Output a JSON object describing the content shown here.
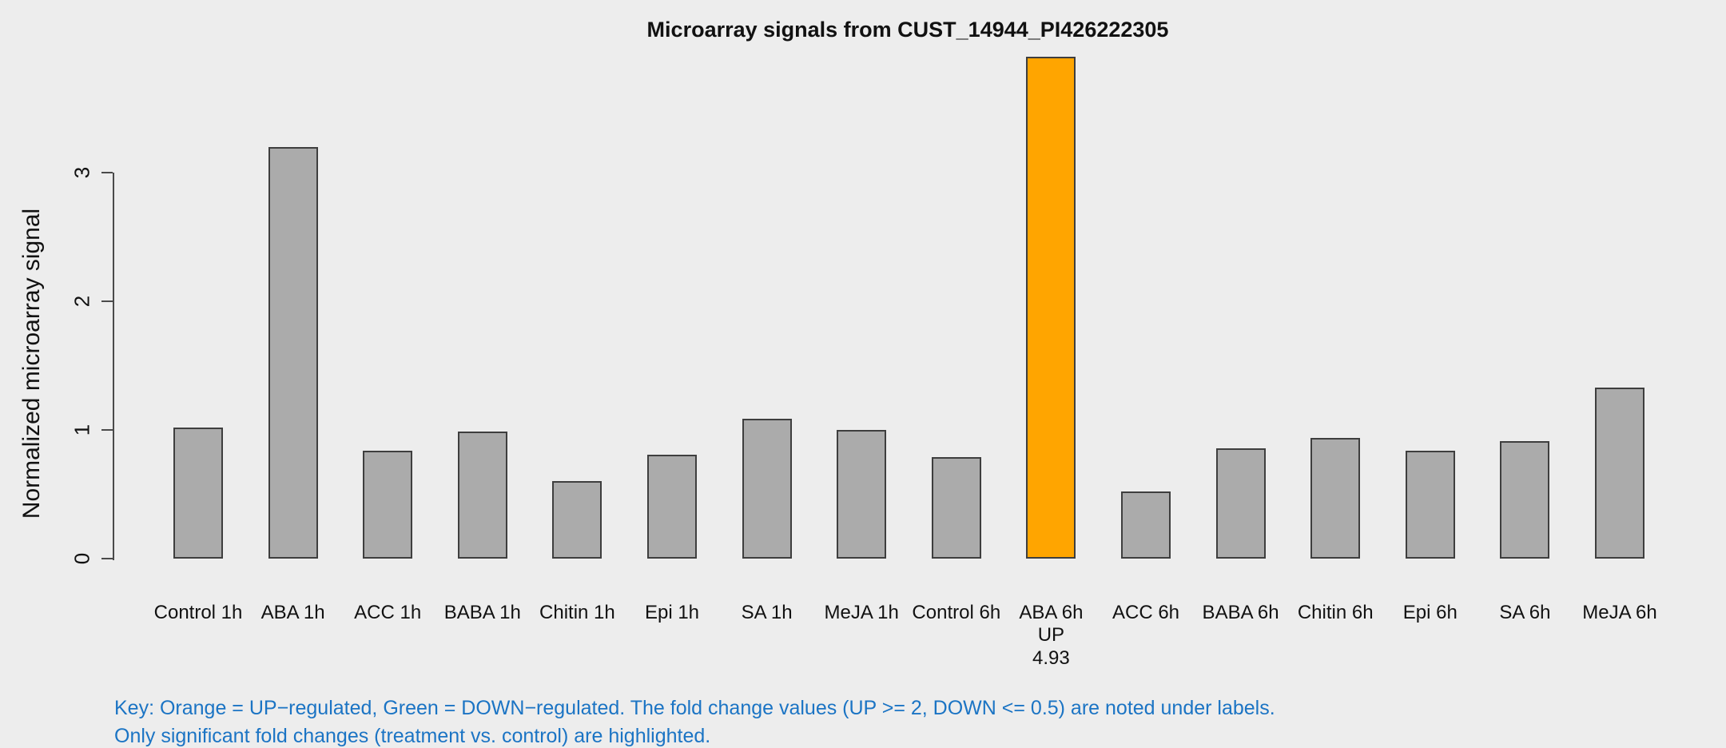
{
  "title": "Microarray signals from CUST_14944_PI426222305",
  "colors": {
    "background": "#EDEDED",
    "bar_default": "#ABABAB",
    "bar_up_highlight": "#FFA500",
    "bar_border": "#3E3E3E",
    "axis": "#4A4A4A",
    "text": "#111111",
    "key_text": "#1B74C4"
  },
  "chart_data": {
    "type": "bar",
    "title": "Microarray signals from CUST_14944_PI426222305",
    "xlabel": "",
    "ylabel": "Normalized microarray signal",
    "ylim": [
      0,
      4.05
    ],
    "yticks": [
      0,
      1,
      2,
      3
    ],
    "grid": false,
    "legend_position": "none",
    "categories": [
      "Control 1h",
      "ABA 1h",
      "ACC 1h",
      "BABA 1h",
      "Chitin 1h",
      "Epi 1h",
      "SA 1h",
      "MeJA 1h",
      "Control 6h",
      "ABA 6h",
      "ACC 6h",
      "BABA 6h",
      "Chitin 6h",
      "Epi 6h",
      "SA 6h",
      "MeJA 6h"
    ],
    "values": [
      1.02,
      3.2,
      0.84,
      0.99,
      0.6,
      0.81,
      1.09,
      1.0,
      0.79,
      3.9,
      0.52,
      0.86,
      0.94,
      0.84,
      0.91,
      1.33
    ],
    "highlighted_bars": [
      {
        "index": 9,
        "category": "ABA 6h",
        "direction": "UP",
        "fold_change": "4.93",
        "color": "#FFA500"
      }
    ],
    "annotations": [
      {
        "index": 9,
        "lines": [
          "UP",
          "4.93"
        ]
      }
    ]
  },
  "key": {
    "line1": "Key: Orange = UP−regulated, Green = DOWN−regulated. The fold change values (UP >= 2, DOWN <= 0.5) are noted under labels.",
    "line2": "Only significant fold changes (treatment vs. control) are highlighted."
  }
}
